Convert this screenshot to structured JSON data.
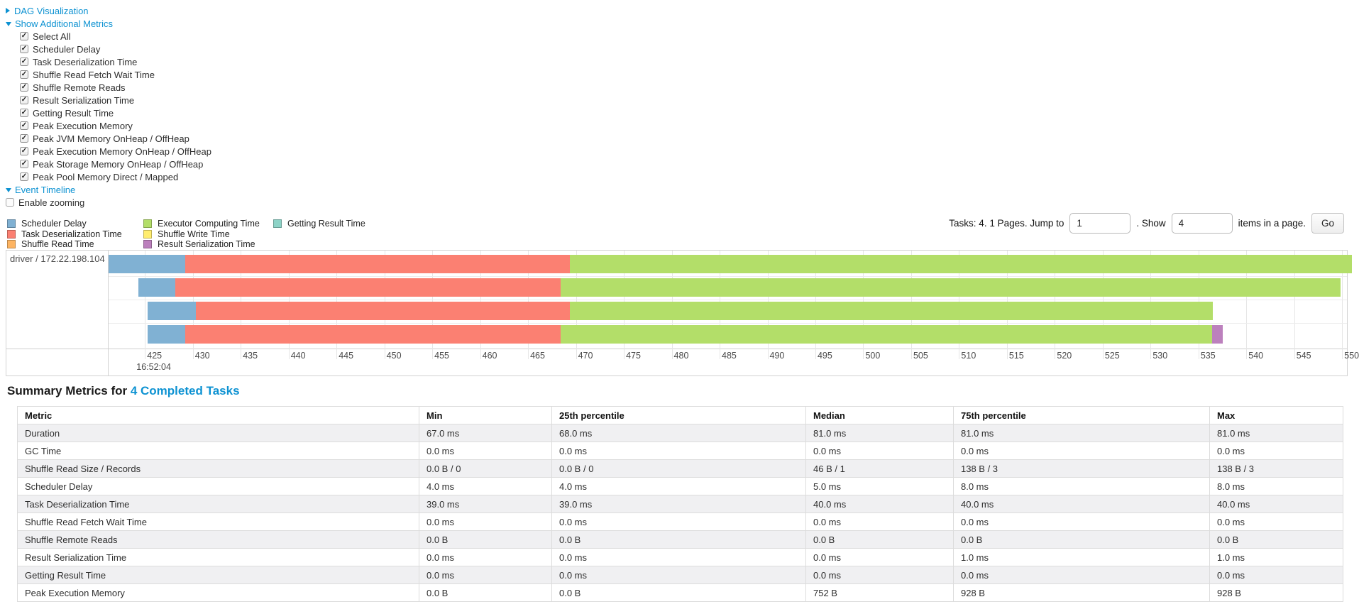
{
  "controls": {
    "dag": {
      "label": "DAG Visualization",
      "state": "collapsed"
    },
    "metrics_toggle": {
      "label": "Show Additional Metrics",
      "state": "expanded"
    },
    "metric_checkboxes": [
      "Select All",
      "Scheduler Delay",
      "Task Deserialization Time",
      "Shuffle Read Fetch Wait Time",
      "Shuffle Remote Reads",
      "Result Serialization Time",
      "Getting Result Time",
      "Peak Execution Memory",
      "Peak JVM Memory OnHeap / OffHeap",
      "Peak Execution Memory OnHeap / OffHeap",
      "Peak Storage Memory OnHeap / OffHeap",
      "Peak Pool Memory Direct / Mapped"
    ],
    "event_timeline": {
      "label": "Event Timeline",
      "state": "expanded"
    },
    "enable_zooming": {
      "label": "Enable zooming",
      "checked": false
    }
  },
  "pagination": {
    "prefix": "Tasks: 4. 1 Pages. Jump to",
    "jump_value": "1",
    "middle": ". Show",
    "show_value": "4",
    "suffix": "items in a page.",
    "go_label": "Go"
  },
  "accent_color": "#0d92d2",
  "chart_data": {
    "type": "timeline",
    "group_label": "driver / 172.22.198.104",
    "palette": {
      "scheduler_delay": "#80B1D3",
      "task_deserialization_time": "#FB8072",
      "shuffle_read_time": "#FDB462",
      "executor_computing_time": "#B3DE69",
      "shuffle_write_time": "#FFED6F",
      "result_serialization_time": "#BC80BD",
      "getting_result_time": "#8DD3C7"
    },
    "legend_columns": [
      [
        {
          "label": "Scheduler Delay",
          "metric": "scheduler_delay"
        },
        {
          "label": "Task Deserialization Time",
          "metric": "task_deserialization_time"
        },
        {
          "label": "Shuffle Read Time",
          "metric": "shuffle_read_time"
        }
      ],
      [
        {
          "label": "Executor Computing Time",
          "metric": "executor_computing_time"
        },
        {
          "label": "Shuffle Write Time",
          "metric": "shuffle_write_time"
        },
        {
          "label": "Result Serialization Time",
          "metric": "result_serialization_time"
        }
      ],
      [
        {
          "label": "Getting Result Time",
          "metric": "getting_result_time"
        }
      ]
    ],
    "axis": {
      "unit": "milliseconds within second 16:52:04",
      "view_start": 421.2,
      "view_end": 550.5,
      "tick_step": 5,
      "tick_values": [
        425,
        430,
        435,
        440,
        445,
        450,
        455,
        460,
        465,
        470,
        475,
        480,
        485,
        490,
        495,
        500,
        505,
        510,
        515,
        520,
        525,
        530,
        535,
        540,
        545,
        550
      ],
      "major_label": "16:52:04",
      "major_tick": 425
    },
    "tasks": [
      {
        "segments": [
          {
            "metric": "scheduler_delay",
            "start": 421.2,
            "end": 429.2
          },
          {
            "metric": "task_deserialization_time",
            "start": 429.2,
            "end": 469.4
          },
          {
            "metric": "executor_computing_time",
            "start": 469.4,
            "end": 551.0
          }
        ]
      },
      {
        "segments": [
          {
            "metric": "scheduler_delay",
            "start": 424.3,
            "end": 428.2
          },
          {
            "metric": "task_deserialization_time",
            "start": 428.2,
            "end": 468.4
          },
          {
            "metric": "executor_computing_time",
            "start": 468.4,
            "end": 549.8
          }
        ]
      },
      {
        "segments": [
          {
            "metric": "scheduler_delay",
            "start": 425.3,
            "end": 430.3
          },
          {
            "metric": "task_deserialization_time",
            "start": 430.3,
            "end": 469.4
          },
          {
            "metric": "executor_computing_time",
            "start": 469.4,
            "end": 536.5
          }
        ]
      },
      {
        "segments": [
          {
            "metric": "scheduler_delay",
            "start": 425.3,
            "end": 429.2
          },
          {
            "metric": "task_deserialization_time",
            "start": 429.2,
            "end": 468.4
          },
          {
            "metric": "executor_computing_time",
            "start": 468.4,
            "end": 536.4
          },
          {
            "metric": "result_serialization_time",
            "start": 536.4,
            "end": 537.5
          }
        ]
      }
    ]
  },
  "summary": {
    "title_prefix": "Summary Metrics for ",
    "title_link": "4 Completed Tasks",
    "columns": [
      "Metric",
      "Min",
      "25th percentile",
      "Median",
      "75th percentile",
      "Max"
    ],
    "rows": [
      [
        "Duration",
        "67.0 ms",
        "68.0 ms",
        "81.0 ms",
        "81.0 ms",
        "81.0 ms"
      ],
      [
        "GC Time",
        "0.0 ms",
        "0.0 ms",
        "0.0 ms",
        "0.0 ms",
        "0.0 ms"
      ],
      [
        "Shuffle Read Size / Records",
        "0.0 B / 0",
        "0.0 B / 0",
        "46 B / 1",
        "138 B / 3",
        "138 B / 3"
      ],
      [
        "Scheduler Delay",
        "4.0 ms",
        "4.0 ms",
        "5.0 ms",
        "8.0 ms",
        "8.0 ms"
      ],
      [
        "Task Deserialization Time",
        "39.0 ms",
        "39.0 ms",
        "40.0 ms",
        "40.0 ms",
        "40.0 ms"
      ],
      [
        "Shuffle Read Fetch Wait Time",
        "0.0 ms",
        "0.0 ms",
        "0.0 ms",
        "0.0 ms",
        "0.0 ms"
      ],
      [
        "Shuffle Remote Reads",
        "0.0 B",
        "0.0 B",
        "0.0 B",
        "0.0 B",
        "0.0 B"
      ],
      [
        "Result Serialization Time",
        "0.0 ms",
        "0.0 ms",
        "0.0 ms",
        "1.0 ms",
        "1.0 ms"
      ],
      [
        "Getting Result Time",
        "0.0 ms",
        "0.0 ms",
        "0.0 ms",
        "0.0 ms",
        "0.0 ms"
      ],
      [
        "Peak Execution Memory",
        "0.0 B",
        "0.0 B",
        "752 B",
        "928 B",
        "928 B"
      ]
    ]
  }
}
